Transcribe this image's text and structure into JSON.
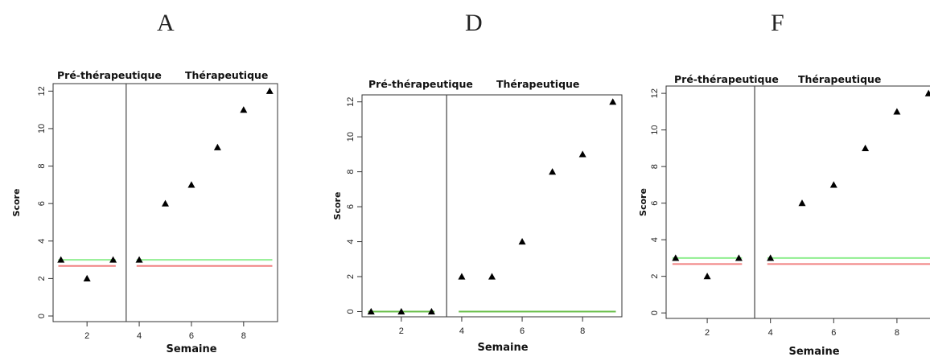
{
  "chart_data": [
    {
      "type": "scatter",
      "title": "A",
      "xlabel": "Semaine",
      "ylabel": "Score",
      "phase_labels": [
        "Pré-thérapeutique",
        "Thérapeutique"
      ],
      "phase_change": 3.5,
      "xlim": [
        0.7,
        9.3
      ],
      "ylim": [
        -0.3,
        12.4
      ],
      "x_ticks": [
        2,
        4,
        6,
        8
      ],
      "y_ticks": [
        0,
        2,
        4,
        6,
        8,
        10,
        12
      ],
      "points": [
        [
          1,
          3
        ],
        [
          2,
          2
        ],
        [
          3,
          3
        ],
        [
          4,
          3
        ],
        [
          5,
          6
        ],
        [
          6,
          7
        ],
        [
          7,
          9
        ],
        [
          8,
          11
        ],
        [
          9,
          12
        ]
      ],
      "reference_lines": [
        {
          "phase": 1,
          "y": 3,
          "color": "#90ee90"
        },
        {
          "phase": 1,
          "y": 2.67,
          "color": "#f08080"
        },
        {
          "phase": 2,
          "y": 3,
          "color": "#90ee90"
        },
        {
          "phase": 2,
          "y": 2.67,
          "color": "#f08080"
        }
      ]
    },
    {
      "type": "scatter",
      "title": "D",
      "xlabel": "Semaine",
      "ylabel": "Score",
      "phase_labels": [
        "Pré-thérapeutique",
        "Thérapeutique"
      ],
      "phase_change": 3.5,
      "xlim": [
        0.7,
        9.3
      ],
      "ylim": [
        -0.3,
        12.4
      ],
      "x_ticks": [
        2,
        4,
        6,
        8
      ],
      "y_ticks": [
        0,
        2,
        4,
        6,
        8,
        10,
        12
      ],
      "points": [
        [
          1,
          0
        ],
        [
          2,
          0
        ],
        [
          3,
          0
        ],
        [
          4,
          2
        ],
        [
          5,
          2
        ],
        [
          6,
          4
        ],
        [
          7,
          8
        ],
        [
          8,
          9
        ],
        [
          9,
          12
        ]
      ],
      "reference_lines": [
        {
          "phase": 1,
          "y": 0,
          "color": "#6abf4b"
        },
        {
          "phase": 2,
          "y": 0,
          "color": "#6abf4b"
        }
      ]
    },
    {
      "type": "scatter",
      "title": "F",
      "xlabel": "Semaine",
      "ylabel": "Score",
      "phase_labels": [
        "Pré-thérapeutique",
        "Thérapeutique"
      ],
      "phase_change": 3.5,
      "xlim": [
        0.7,
        9.3
      ],
      "ylim": [
        -0.3,
        12.4
      ],
      "x_ticks": [
        2,
        4,
        6,
        8
      ],
      "y_ticks": [
        0,
        2,
        4,
        6,
        8,
        10,
        12
      ],
      "points": [
        [
          1,
          3
        ],
        [
          2,
          2
        ],
        [
          3,
          3
        ],
        [
          4,
          3
        ],
        [
          5,
          6
        ],
        [
          6,
          7
        ],
        [
          7,
          9
        ],
        [
          8,
          11
        ],
        [
          9,
          12
        ]
      ],
      "reference_lines": [
        {
          "phase": 1,
          "y": 3,
          "color": "#90ee90"
        },
        {
          "phase": 1,
          "y": 2.67,
          "color": "#f08080"
        },
        {
          "phase": 2,
          "y": 3,
          "color": "#90ee90"
        },
        {
          "phase": 2,
          "y": 2.67,
          "color": "#f08080"
        }
      ]
    }
  ]
}
